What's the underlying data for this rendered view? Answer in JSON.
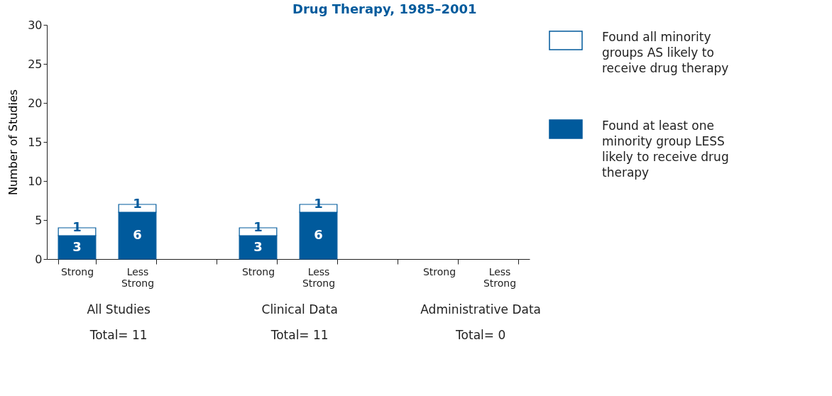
{
  "chart_data": {
    "type": "bar",
    "title": "Drug Therapy, 1985–2001",
    "ylabel": "Number of Studies",
    "categories": [
      "Strong",
      "Less Strong",
      null,
      "Strong",
      "Less Strong",
      null,
      "Strong",
      "Less Strong"
    ],
    "stacked": true,
    "series": [
      {
        "name": "Found at least one minority group LESS likely to receive drug therapy",
        "color": "#005a9c",
        "values": [
          3,
          6,
          null,
          3,
          6,
          null,
          0,
          0
        ],
        "value_labels": [
          "3",
          "6",
          null,
          "3",
          "6",
          null,
          null,
          null
        ]
      },
      {
        "name": "Found all minority groups AS likely to receive drug therapy",
        "color": "#ffffff",
        "values": [
          1,
          1,
          null,
          1,
          1,
          null,
          0,
          0
        ],
        "value_labels": [
          "1",
          "1",
          null,
          "1",
          "1",
          null,
          null,
          null
        ]
      }
    ],
    "annotations": [
      "All Studies",
      "Clinical Data",
      "Administrative Data",
      "Total= 11",
      "Total= 11",
      "Total= 0"
    ],
    "ylim": [
      0,
      30
    ],
    "yticks": [
      0,
      5,
      10,
      15,
      20,
      25,
      30
    ],
    "grid": false,
    "legend": "top right"
  }
}
